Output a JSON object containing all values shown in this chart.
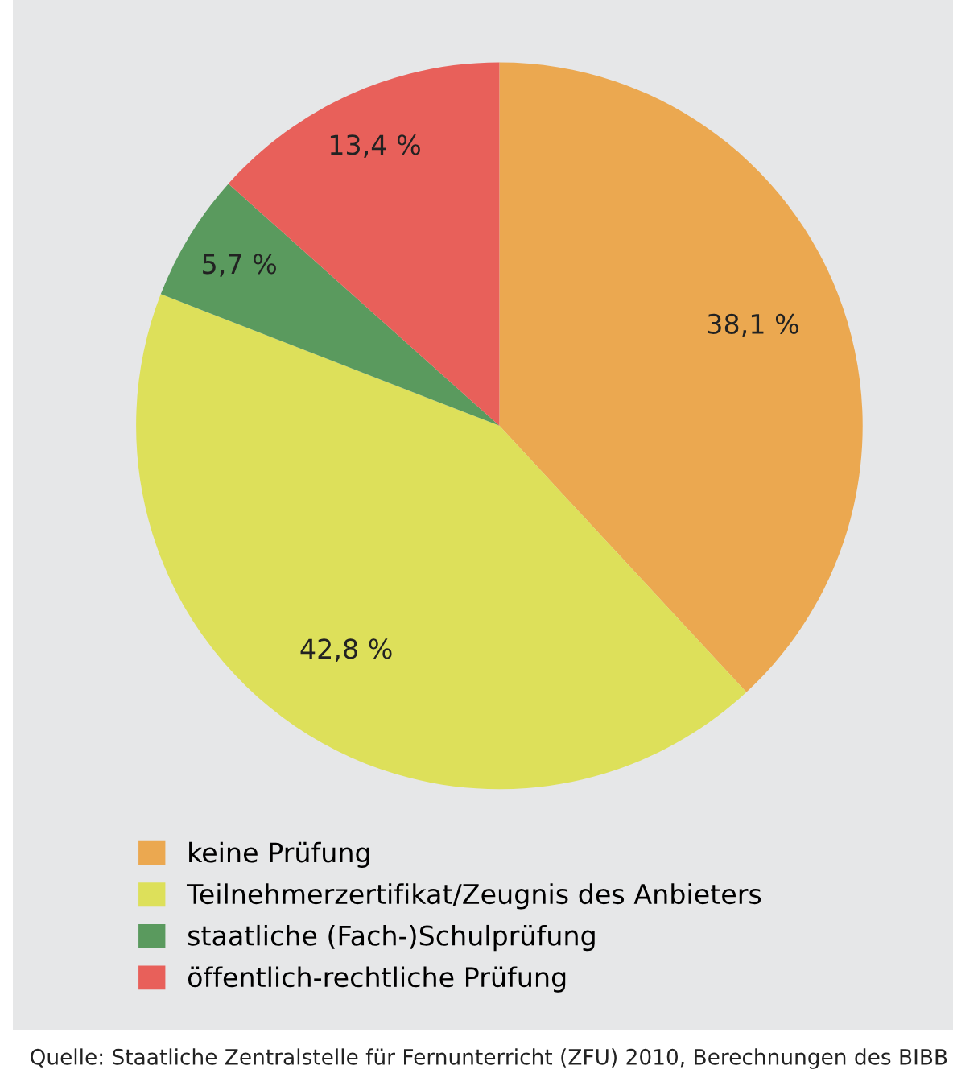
{
  "chart_data": {
    "type": "pie",
    "categories": [
      "keine Prüfung",
      "Teilnehmerzertifikat/Zeugnis des Anbieters",
      "staatliche (Fach-)Schulprüfung",
      "öffentlich-rechtliche Prüfung"
    ],
    "values": [
      38.1,
      42.8,
      5.7,
      13.4
    ],
    "value_labels": [
      "38,1 %",
      "42,8 %",
      "5,7 %",
      "13,4 %"
    ],
    "colors": [
      "#eba850",
      "#dde05a",
      "#5a9a5e",
      "#e8605a"
    ],
    "legend": "bottom",
    "annotations": [
      "Quelle: Staatliche Zentralstelle für Fernunterricht (ZFU) 2010, Berechnungen des BIBB"
    ]
  }
}
